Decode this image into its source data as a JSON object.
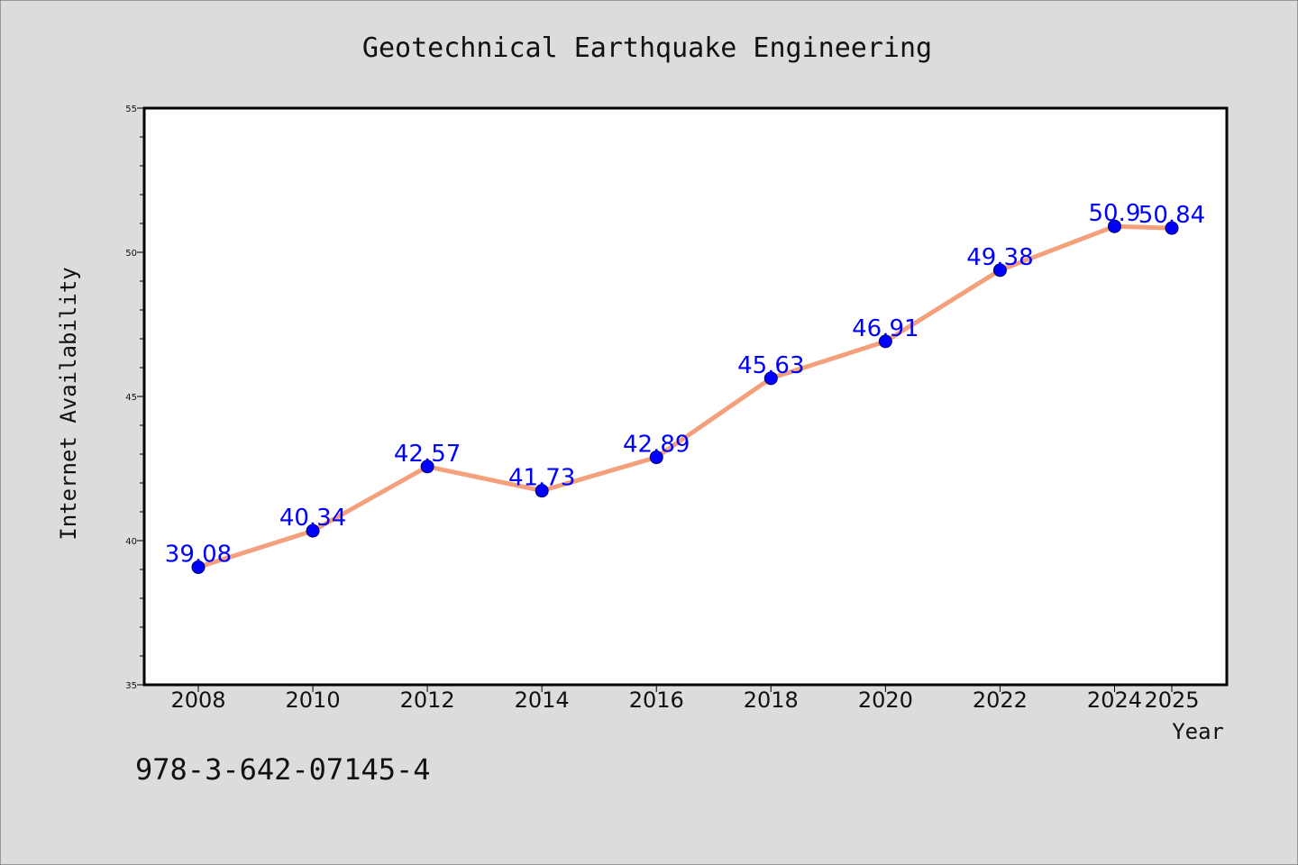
{
  "colors": {
    "background": "#dcdcdc",
    "plot_background": "#ffffff",
    "line": "#f4a07c",
    "marker": "#0000ff",
    "data_label": "#0000ff",
    "axis": "#000000"
  },
  "footer": {
    "isbn": "978-3-642-07145-4"
  },
  "chart_data": {
    "type": "line",
    "title": "Geotechnical Earthquake Engineering",
    "xlabel": "Year",
    "ylabel": "Internet Availability",
    "categories": [
      "2008",
      "2010",
      "2012",
      "2014",
      "2016",
      "2018",
      "2020",
      "2022",
      "2024",
      "2025"
    ],
    "series": [
      {
        "values": [
          39.08,
          40.34,
          42.57,
          41.73,
          42.89,
          45.63,
          46.91,
          49.38,
          50.9,
          50.84
        ],
        "data_labels": [
          "39.08",
          "40.34",
          "42.57",
          "41.73",
          "42.89",
          "45.63",
          "46.91",
          "49.38",
          "50.9",
          "50.84"
        ]
      }
    ],
    "ylim": [
      35,
      55
    ],
    "yticks": [
      "35",
      "40",
      "45",
      "50",
      "55"
    ],
    "grid": false,
    "legend": "none"
  }
}
